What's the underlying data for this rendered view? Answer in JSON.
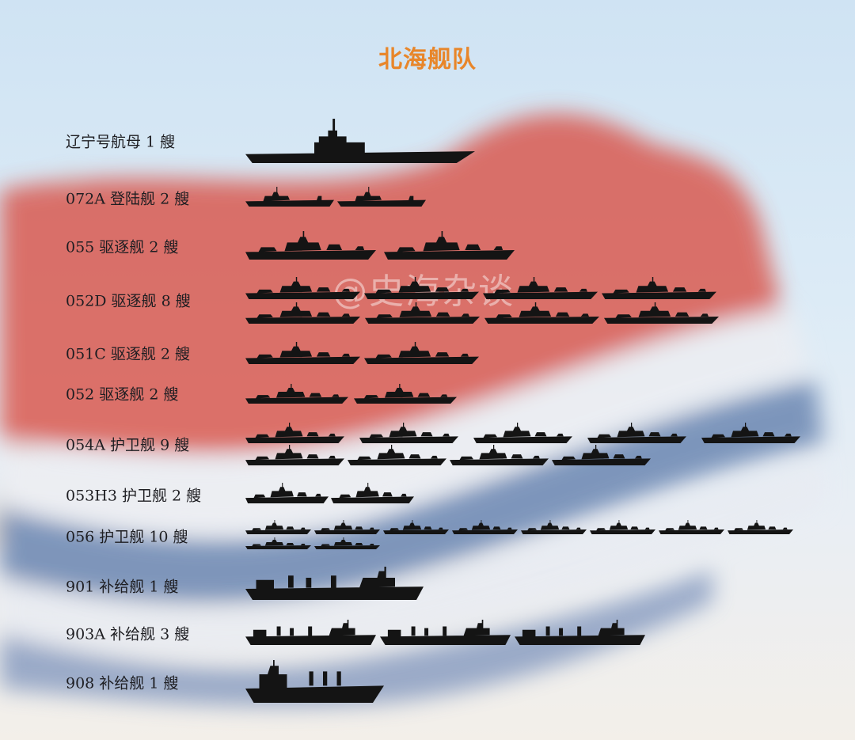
{
  "title": "北海舰队",
  "watermark": "@史海杂谈",
  "colors": {
    "title": "#e8862a",
    "ship": "#141414",
    "flag_red": "#d9463a",
    "flag_blue": "#5a78a8"
  },
  "rows": [
    {
      "label": "辽宁号航母 1 艘",
      "count": 1,
      "kind": "carrier"
    },
    {
      "label": "072A 登陆舰  2 艘",
      "count": 2,
      "kind": "amphib"
    },
    {
      "label": "055 驱逐舰 2 艘",
      "count": 2,
      "kind": "warship"
    },
    {
      "label": "052D 驱逐舰  8  艘",
      "count": 8,
      "kind": "warship"
    },
    {
      "label": "051C 驱逐舰  2 艘",
      "count": 2,
      "kind": "warship"
    },
    {
      "label": "052 驱逐舰  2 艘",
      "count": 2,
      "kind": "warship"
    },
    {
      "label": "054A 护卫舰 9 艘",
      "count": 9,
      "kind": "warship"
    },
    {
      "label": "053H3 护卫舰  2 艘",
      "count": 2,
      "kind": "warship"
    },
    {
      "label": "056 护卫舰  10 艘",
      "count": 10,
      "kind": "warship"
    },
    {
      "label": "901 补给舰  1 艘",
      "count": 1,
      "kind": "supply"
    },
    {
      "label": "903A 补给舰  3 艘",
      "count": 3,
      "kind": "supply"
    },
    {
      "label": "908 补给舰 1 艘",
      "count": 1,
      "kind": "tanker"
    }
  ]
}
